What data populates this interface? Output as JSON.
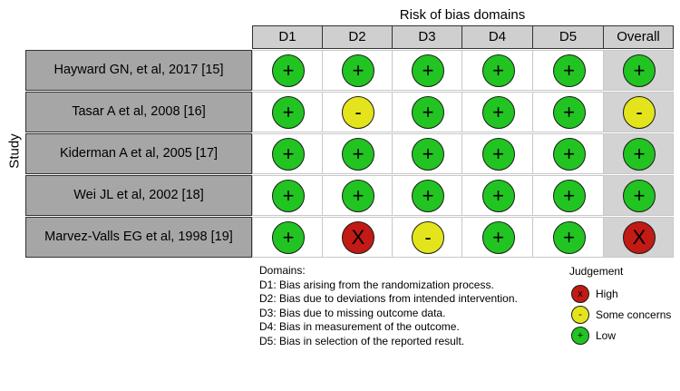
{
  "title": "Risk of bias domains",
  "y_axis_label": "Study",
  "columns": [
    "D1",
    "D2",
    "D3",
    "D4",
    "D5",
    "Overall"
  ],
  "studies": [
    {
      "name": "Hayward GN, et al, 2017 [15]",
      "judgements": [
        "low",
        "low",
        "low",
        "low",
        "low",
        "low"
      ]
    },
    {
      "name": "Tasar A et al, 2008 [16]",
      "judgements": [
        "low",
        "some",
        "low",
        "low",
        "low",
        "some"
      ]
    },
    {
      "name": "Kiderman A et al, 2005 [17]",
      "judgements": [
        "low",
        "low",
        "low",
        "low",
        "low",
        "low"
      ]
    },
    {
      "name": "Wei JL et al, 2002 [18]",
      "judgements": [
        "low",
        "low",
        "low",
        "low",
        "low",
        "low"
      ]
    },
    {
      "name": "Marvez-Valls EG  et al, 1998 [19]",
      "judgements": [
        "low",
        "high",
        "some",
        "low",
        "low",
        "high"
      ]
    }
  ],
  "symbols": {
    "low": "+",
    "some": "-",
    "high": "X"
  },
  "colors": {
    "low": "#22c422",
    "some": "#e4e41c",
    "high": "#c21a14"
  },
  "domains_legend": {
    "title": "Domains:",
    "items": [
      "D1: Bias arising from the randomization process.",
      "D2: Bias due to deviations from intended intervention.",
      "D3: Bias due to missing outcome data.",
      "D4: Bias in measurement of the outcome.",
      "D5: Bias in selection of the reported result."
    ]
  },
  "judgement_legend": {
    "title": "Judgement",
    "items": [
      {
        "key": "high",
        "symbol": "x",
        "label": "High"
      },
      {
        "key": "some",
        "symbol": "-",
        "label": "Some concerns"
      },
      {
        "key": "low",
        "symbol": "+",
        "label": "Low"
      }
    ]
  }
}
